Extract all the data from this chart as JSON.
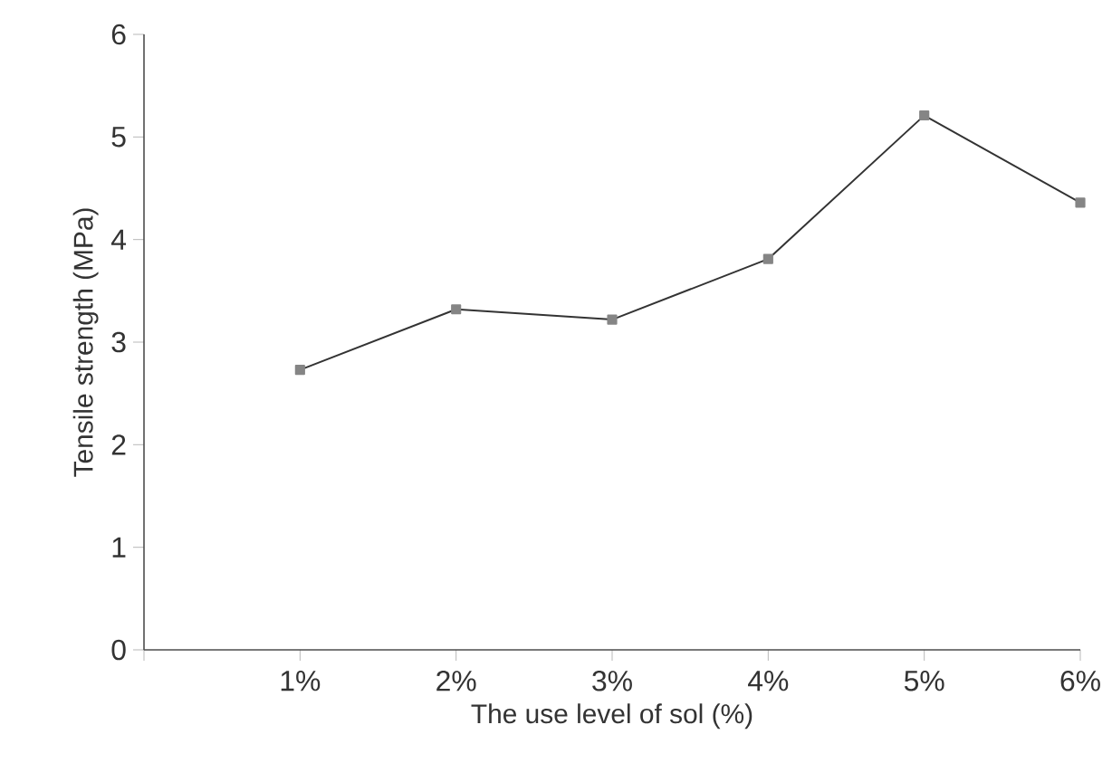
{
  "chart_data": {
    "type": "line",
    "xlabel": "The use level of sol (%)",
    "ylabel": "Tensile strength (MPa)",
    "categories": [
      "1%",
      "2%",
      "3%",
      "4%",
      "5%",
      "6%"
    ],
    "series": [
      {
        "color": "#333333",
        "values": [
          2.73,
          3.32,
          3.22,
          3.81,
          5.21,
          4.36
        ]
      }
    ],
    "marker": "square",
    "ylim": [
      0,
      6
    ],
    "yticks": [
      0,
      1,
      2,
      3,
      4,
      5,
      6
    ],
    "grid": false
  }
}
